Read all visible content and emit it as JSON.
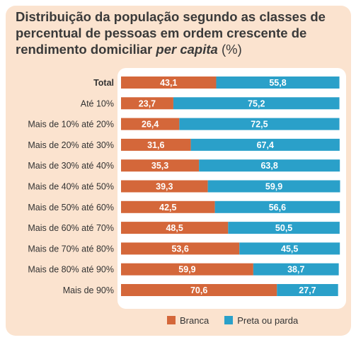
{
  "chart_data": {
    "type": "bar",
    "orientation": "horizontal",
    "stacked": true,
    "title_parts": {
      "main": "Distribuição da população segundo as classes de percentual de pessoas em ordem crescente de rendimento domiciliar",
      "italic": "per capita",
      "unit": "(%)"
    },
    "categories": [
      "Total",
      "Até 10%",
      "Mais de 10% até 20%",
      "Mais de 20% até 30%",
      "Mais de 30% até 40%",
      "Mais de 40% até 50%",
      "Mais de 50% até 60%",
      "Mais de 60% até 70%",
      "Mais de 70% até 80%",
      "Mais de 80% até 90%",
      "Mais de 90%"
    ],
    "series": [
      {
        "name": "Branca",
        "color": "#d4673a",
        "values": [
          43.1,
          23.7,
          26.4,
          31.6,
          35.3,
          39.3,
          42.5,
          48.5,
          53.6,
          59.9,
          70.6
        ],
        "labels": [
          "43,1",
          "23,7",
          "26,4",
          "31,6",
          "35,3",
          "39,3",
          "42,5",
          "48,5",
          "53,6",
          "59,9",
          "70,6"
        ]
      },
      {
        "name": "Preta ou parda",
        "color": "#2aa0c9",
        "values": [
          55.8,
          75.2,
          72.5,
          67.4,
          63.8,
          59.9,
          56.6,
          50.5,
          45.5,
          38.7,
          27.7
        ],
        "labels": [
          "55,8",
          "75,2",
          "72,5",
          "67,4",
          "63,8",
          "59,9",
          "56,6",
          "50,5",
          "45,5",
          "38,7",
          "27,7"
        ]
      }
    ],
    "xlim": [
      0,
      100
    ],
    "legend_position": "bottom-right",
    "grid": false
  }
}
